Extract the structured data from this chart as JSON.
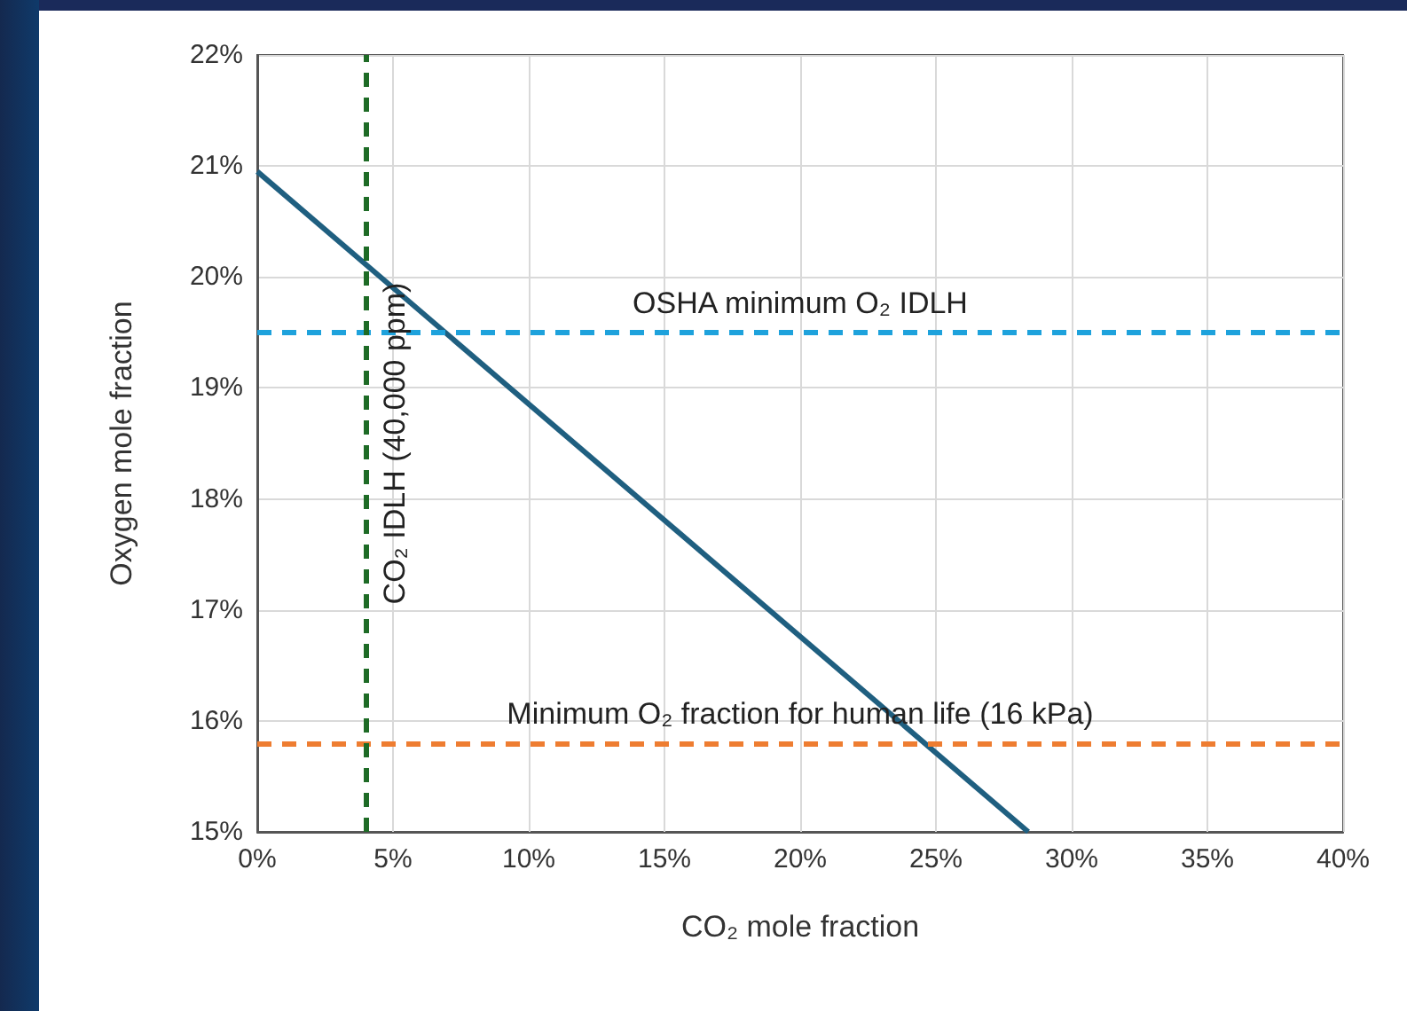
{
  "chart_data": {
    "type": "line",
    "xlabel": "CO₂ mole fraction",
    "ylabel": "Oxygen mole fraction",
    "x": [
      0,
      28.4
    ],
    "series": [
      {
        "color": "#1f5f80",
        "values": [
          20.95,
          15
        ]
      }
    ],
    "xlim": [
      0,
      40
    ],
    "ylim": [
      15,
      22
    ],
    "xticks": [
      {
        "value": 0,
        "label": "0%"
      },
      {
        "value": 5,
        "label": "5%"
      },
      {
        "value": 10,
        "label": "10%"
      },
      {
        "value": 15,
        "label": "15%"
      },
      {
        "value": 20,
        "label": "20%"
      },
      {
        "value": 25,
        "label": "25%"
      },
      {
        "value": 30,
        "label": "30%"
      },
      {
        "value": 35,
        "label": "35%"
      },
      {
        "value": 40,
        "label": "40%"
      }
    ],
    "yticks": [
      {
        "value": 15,
        "label": "15%"
      },
      {
        "value": 16,
        "label": "16%"
      },
      {
        "value": 17,
        "label": "17%"
      },
      {
        "value": 18,
        "label": "18%"
      },
      {
        "value": 19,
        "label": "19%"
      },
      {
        "value": 20,
        "label": "20%"
      },
      {
        "value": 21,
        "label": "21%"
      },
      {
        "value": 22,
        "label": "22%"
      }
    ],
    "ref_lines": [
      {
        "axis": "y",
        "value": 19.5,
        "label": "OSHA minimum O₂ IDLH",
        "color": "#1ea2dc",
        "line_style": "dashed"
      },
      {
        "axis": "y",
        "value": 15.8,
        "label": "Minimum O₂ fraction for human life (16 kPa)",
        "color": "#ee7d31",
        "line_style": "dashed"
      },
      {
        "axis": "x",
        "value": 4,
        "label": "CO₂ IDLH (40,000 ppm)",
        "color": "#1e6b26",
        "line_style": "dashed"
      }
    ],
    "grid": true,
    "marker": "none",
    "line_style": "solid"
  }
}
